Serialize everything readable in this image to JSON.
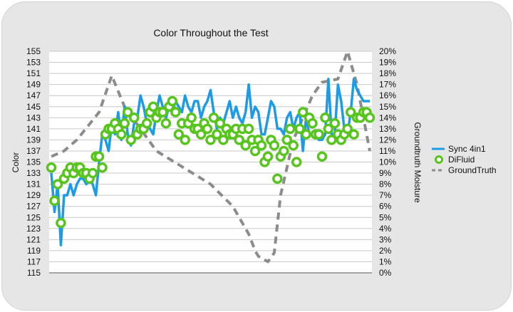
{
  "chart_data": {
    "type": "line",
    "title": "Color Throughout the Test",
    "ylabel": "Color",
    "y2label": "Groundtruth Moisture",
    "ylim": [
      115,
      155
    ],
    "y2lim": [
      0,
      20
    ],
    "yticks": [
      "155",
      "153",
      "151",
      "149",
      "147",
      "145",
      "143",
      "141",
      "139",
      "137",
      "135",
      "133",
      "131",
      "129",
      "127",
      "125",
      "123",
      "121",
      "119",
      "117",
      "115"
    ],
    "y2ticks": [
      "20%",
      "19%",
      "18%",
      "17%",
      "16%",
      "15%",
      "14%",
      "13%",
      "12%",
      "11%",
      "10%",
      "9%",
      "8%",
      "7%",
      "6%",
      "5%",
      "4%",
      "3%",
      "2%",
      "1%",
      "0%"
    ],
    "grid": true,
    "legend_position": "right",
    "x_index_max": 100,
    "series": [
      {
        "name": "Sync 4in1",
        "axis": "left",
        "color": "#1d9be6",
        "style": "solid",
        "x": [
          0,
          1,
          2,
          3,
          4,
          5,
          6,
          7,
          8,
          9,
          10,
          11,
          12,
          13,
          14,
          15,
          16,
          17,
          18,
          19,
          20,
          21,
          22,
          23,
          24,
          25,
          26,
          27,
          28,
          29,
          30,
          31,
          32,
          33,
          34,
          35,
          36,
          37,
          38,
          39,
          40,
          41,
          42,
          43,
          44,
          45,
          46,
          47,
          48,
          49,
          50,
          51,
          52,
          53,
          54,
          55,
          56,
          57,
          58,
          59,
          60,
          61,
          62,
          63,
          64,
          65,
          66,
          67,
          68,
          69,
          70,
          71,
          72,
          73,
          74,
          75,
          76,
          77,
          78,
          79,
          80,
          81,
          82,
          83,
          84,
          85,
          86,
          87,
          88,
          89,
          90,
          91,
          92,
          93,
          94,
          95,
          96,
          97,
          98,
          99,
          100
        ],
        "values": [
          133,
          126,
          131,
          120,
          129,
          129,
          131,
          129,
          131,
          132,
          132,
          131,
          132,
          131,
          129,
          135,
          140,
          139,
          137,
          142,
          140,
          144,
          139,
          145,
          140,
          138,
          142,
          143,
          147,
          145,
          142,
          141,
          140,
          144,
          147,
          145,
          143,
          145,
          144,
          146,
          145,
          144,
          147,
          145,
          144,
          146,
          146,
          143,
          145,
          146,
          148,
          144,
          141,
          143,
          142,
          144,
          146,
          143,
          145,
          143,
          142,
          144,
          149,
          143,
          145,
          144,
          140,
          140,
          143,
          146,
          145,
          141,
          141,
          140,
          143,
          144,
          141,
          143,
          144,
          137,
          143,
          140,
          140,
          140,
          139,
          139,
          140,
          150,
          140,
          140,
          149,
          146,
          141,
          140,
          144,
          150,
          148,
          147,
          146,
          146,
          146
        ]
      },
      {
        "name": "DiFluid",
        "axis": "left",
        "color": "#58c51f",
        "style": "markers",
        "x": [
          0,
          1,
          2,
          3,
          4,
          5,
          6,
          7,
          8,
          9,
          10,
          11,
          12,
          13,
          14,
          15,
          16,
          17,
          18,
          19,
          20,
          21,
          22,
          23,
          24,
          25,
          26,
          27,
          28,
          29,
          30,
          31,
          32,
          33,
          34,
          35,
          36,
          37,
          38,
          39,
          40,
          41,
          42,
          43,
          44,
          45,
          46,
          47,
          48,
          49,
          50,
          51,
          52,
          53,
          54,
          55,
          56,
          57,
          58,
          59,
          60,
          61,
          62,
          63,
          64,
          65,
          66,
          67,
          68,
          69,
          70,
          71,
          72,
          73,
          74,
          75,
          76,
          77,
          78,
          79,
          80,
          81,
          82,
          83,
          84,
          85,
          86,
          87,
          88,
          89,
          90,
          91,
          92,
          93,
          94,
          95,
          96,
          97,
          98,
          99,
          100
        ],
        "values": [
          134,
          128,
          131,
          124,
          132,
          133,
          134,
          133,
          134,
          134,
          133,
          133,
          132,
          133,
          136,
          136,
          134,
          140,
          141,
          141,
          142,
          141,
          140,
          142,
          144,
          139,
          143,
          140,
          141,
          141,
          142,
          144,
          145,
          143,
          144,
          144,
          142,
          145,
          146,
          144,
          140,
          142,
          139,
          142,
          143,
          141,
          141,
          140,
          142,
          141,
          139,
          143,
          140,
          142,
          139,
          141,
          140,
          140,
          141,
          139,
          141,
          138,
          141,
          139,
          137,
          139,
          138,
          135,
          136,
          139,
          138,
          132,
          136,
          137,
          139,
          141,
          138,
          135,
          141,
          144,
          140,
          143,
          142,
          140,
          140,
          136,
          143,
          141,
          139,
          142,
          140,
          139,
          140,
          141,
          144,
          140,
          143,
          143,
          144,
          144,
          143
        ]
      },
      {
        "name": "GroundTruth",
        "axis": "right",
        "color": "#8c8c8c",
        "style": "dashed",
        "x": [
          0,
          4,
          8,
          15,
          19,
          23,
          33,
          50,
          57,
          62,
          64,
          65,
          68,
          70,
          72,
          76,
          82,
          85,
          90,
          93,
          96,
          100
        ],
        "values": [
          10.5,
          11,
          12,
          14.5,
          17.8,
          15,
          11,
          8,
          6,
          3.5,
          2,
          1.5,
          1,
          1.8,
          7,
          12,
          16,
          17.2,
          17.5,
          20,
          17,
          11
        ]
      }
    ]
  }
}
